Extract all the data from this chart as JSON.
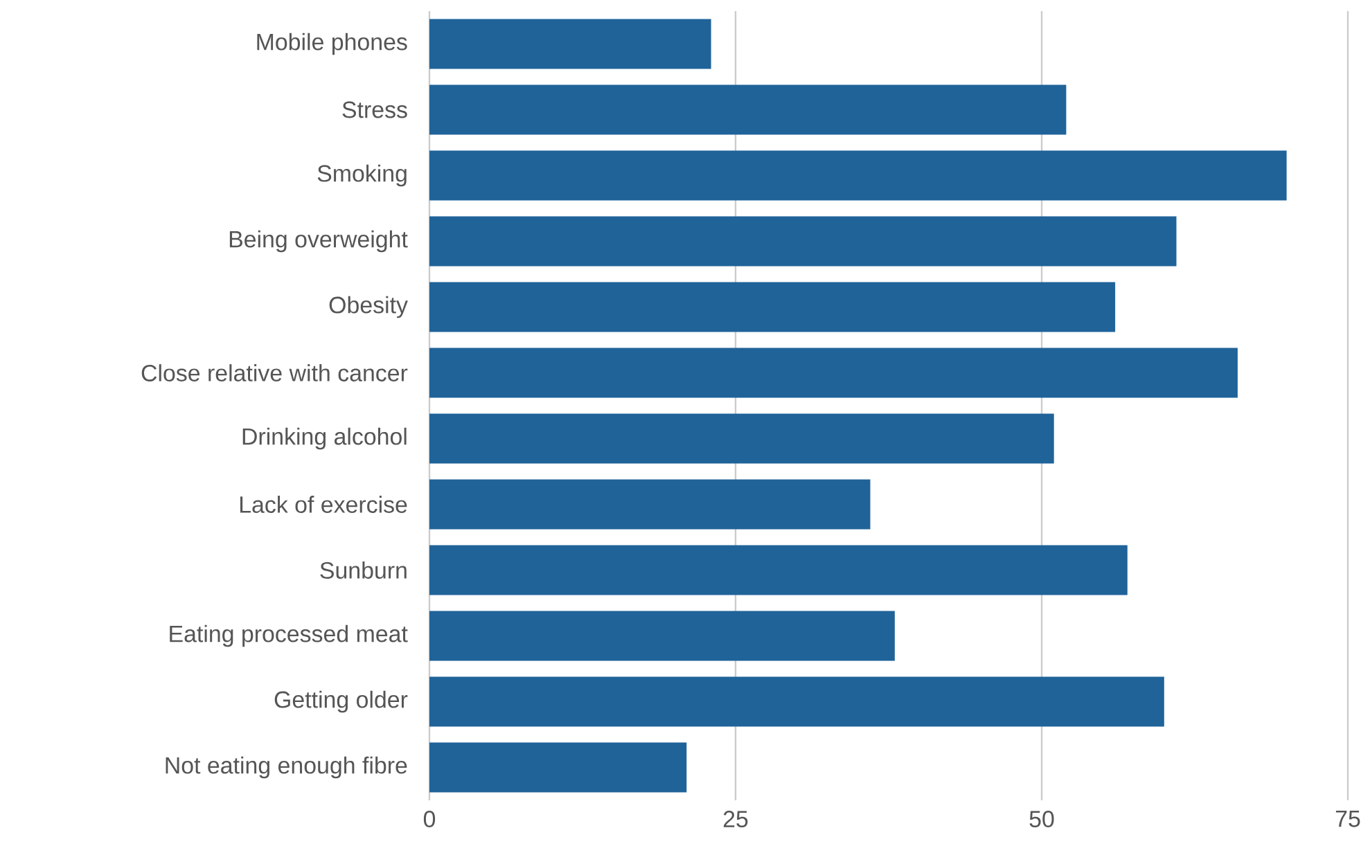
{
  "chart_data": {
    "type": "bar",
    "orientation": "horizontal",
    "categories": [
      "Mobile phones",
      "Stress",
      "Smoking",
      "Being overweight",
      "Obesity",
      "Close relative with cancer",
      "Drinking alcohol",
      "Lack of exercise",
      "Sunburn",
      "Eating processed meat",
      "Getting older",
      "Not eating enough fibre"
    ],
    "values": [
      23,
      52,
      70,
      61,
      56,
      66,
      51,
      36,
      57,
      38,
      60,
      21
    ],
    "color": "#1f6399",
    "xlim": [
      0,
      75
    ],
    "xticks": [
      0,
      25,
      50,
      75
    ],
    "grid": "x"
  }
}
